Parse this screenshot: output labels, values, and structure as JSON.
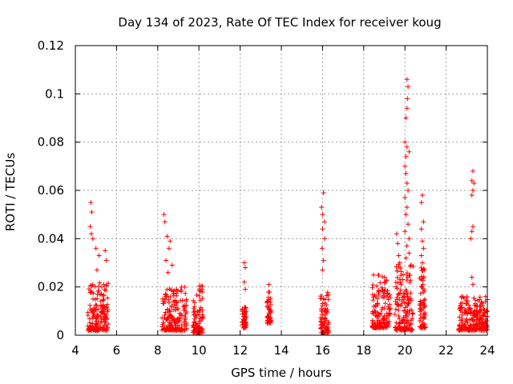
{
  "chart_data": {
    "type": "scatter",
    "title": "Day 134 of 2023, Rate Of TEC Index for receiver koug",
    "xlabel": "GPS time / hours",
    "ylabel": "ROTI / TECUs",
    "xlim": [
      4,
      24
    ],
    "ylim": [
      0,
      0.12
    ],
    "x_ticks": [
      "4",
      "6",
      "8",
      "10",
      "12",
      "14",
      "16",
      "18",
      "20",
      "22",
      "24"
    ],
    "y_ticks": [
      "0",
      "0.02",
      "0.04",
      "0.06",
      "0.08",
      "0.1",
      "0.12"
    ],
    "grid": true,
    "marker": "plus",
    "color": "#ff0000",
    "clusters": [
      {
        "x_range": [
          4.6,
          5.6
        ],
        "y_range": [
          0.002,
          0.022
        ]
      },
      {
        "x_range": [
          8.2,
          9.4
        ],
        "y_range": [
          0.002,
          0.02
        ]
      },
      {
        "x_range": [
          9.7,
          10.2
        ],
        "y_range": [
          0.001,
          0.021
        ]
      },
      {
        "x_range": [
          12.1,
          12.3
        ],
        "y_range": [
          0.003,
          0.012
        ]
      },
      {
        "x_range": [
          13.3,
          13.5
        ],
        "y_range": [
          0.005,
          0.018
        ]
      },
      {
        "x_range": [
          15.9,
          16.3
        ],
        "y_range": [
          0.001,
          0.02
        ]
      },
      {
        "x_range": [
          18.4,
          19.3
        ],
        "y_range": [
          0.003,
          0.025
        ]
      },
      {
        "x_range": [
          19.5,
          20.4
        ],
        "y_range": [
          0.002,
          0.03
        ]
      },
      {
        "x_range": [
          20.7,
          21.0
        ],
        "y_range": [
          0.003,
          0.028
        ]
      },
      {
        "x_range": [
          22.6,
          24.0
        ],
        "y_range": [
          0.002,
          0.016
        ]
      }
    ],
    "peaks": [
      {
        "x": 4.75,
        "y": 0.055
      },
      {
        "x": 4.8,
        "y": 0.051
      },
      {
        "x": 4.72,
        "y": 0.045
      },
      {
        "x": 4.78,
        "y": 0.042
      },
      {
        "x": 4.85,
        "y": 0.04
      },
      {
        "x": 5.0,
        "y": 0.036
      },
      {
        "x": 5.15,
        "y": 0.033
      },
      {
        "x": 5.45,
        "y": 0.035
      },
      {
        "x": 5.5,
        "y": 0.031
      },
      {
        "x": 5.05,
        "y": 0.027
      },
      {
        "x": 8.3,
        "y": 0.05
      },
      {
        "x": 8.35,
        "y": 0.047
      },
      {
        "x": 8.45,
        "y": 0.041
      },
      {
        "x": 8.6,
        "y": 0.039
      },
      {
        "x": 8.55,
        "y": 0.036
      },
      {
        "x": 8.4,
        "y": 0.031
      },
      {
        "x": 8.7,
        "y": 0.029
      },
      {
        "x": 8.5,
        "y": 0.026
      },
      {
        "x": 12.2,
        "y": 0.03
      },
      {
        "x": 12.25,
        "y": 0.028
      },
      {
        "x": 12.2,
        "y": 0.022
      },
      {
        "x": 12.25,
        "y": 0.019
      },
      {
        "x": 13.4,
        "y": 0.021
      },
      {
        "x": 16.05,
        "y": 0.059
      },
      {
        "x": 15.95,
        "y": 0.053
      },
      {
        "x": 16.0,
        "y": 0.05
      },
      {
        "x": 16.1,
        "y": 0.047
      },
      {
        "x": 16.0,
        "y": 0.044
      },
      {
        "x": 16.1,
        "y": 0.04
      },
      {
        "x": 15.98,
        "y": 0.036
      },
      {
        "x": 16.05,
        "y": 0.031
      },
      {
        "x": 16.0,
        "y": 0.027
      },
      {
        "x": 19.6,
        "y": 0.042
      },
      {
        "x": 19.65,
        "y": 0.038
      },
      {
        "x": 19.7,
        "y": 0.033
      },
      {
        "x": 19.75,
        "y": 0.03
      },
      {
        "x": 20.1,
        "y": 0.106
      },
      {
        "x": 20.15,
        "y": 0.103
      },
      {
        "x": 20.12,
        "y": 0.098
      },
      {
        "x": 20.1,
        "y": 0.094
      },
      {
        "x": 20.05,
        "y": 0.09
      },
      {
        "x": 20.0,
        "y": 0.08
      },
      {
        "x": 20.1,
        "y": 0.078
      },
      {
        "x": 20.2,
        "y": 0.076
      },
      {
        "x": 20.05,
        "y": 0.074
      },
      {
        "x": 20.0,
        "y": 0.07
      },
      {
        "x": 20.05,
        "y": 0.067
      },
      {
        "x": 20.1,
        "y": 0.063
      },
      {
        "x": 20.15,
        "y": 0.06
      },
      {
        "x": 20.0,
        "y": 0.057
      },
      {
        "x": 20.1,
        "y": 0.053
      },
      {
        "x": 20.05,
        "y": 0.05
      },
      {
        "x": 20.15,
        "y": 0.046
      },
      {
        "x": 20.0,
        "y": 0.043
      },
      {
        "x": 20.2,
        "y": 0.04
      },
      {
        "x": 20.1,
        "y": 0.037
      },
      {
        "x": 20.2,
        "y": 0.034
      },
      {
        "x": 20.05,
        "y": 0.032
      },
      {
        "x": 20.85,
        "y": 0.058
      },
      {
        "x": 20.8,
        "y": 0.055
      },
      {
        "x": 20.9,
        "y": 0.047
      },
      {
        "x": 20.8,
        "y": 0.044
      },
      {
        "x": 20.85,
        "y": 0.039
      },
      {
        "x": 20.9,
        "y": 0.036
      },
      {
        "x": 20.8,
        "y": 0.033
      },
      {
        "x": 20.85,
        "y": 0.03
      },
      {
        "x": 23.3,
        "y": 0.068
      },
      {
        "x": 23.25,
        "y": 0.064
      },
      {
        "x": 23.35,
        "y": 0.063
      },
      {
        "x": 23.3,
        "y": 0.06
      },
      {
        "x": 23.25,
        "y": 0.058
      },
      {
        "x": 23.3,
        "y": 0.045
      },
      {
        "x": 23.25,
        "y": 0.043
      },
      {
        "x": 23.2,
        "y": 0.04
      },
      {
        "x": 23.25,
        "y": 0.024
      },
      {
        "x": 23.3,
        "y": 0.021
      }
    ]
  }
}
